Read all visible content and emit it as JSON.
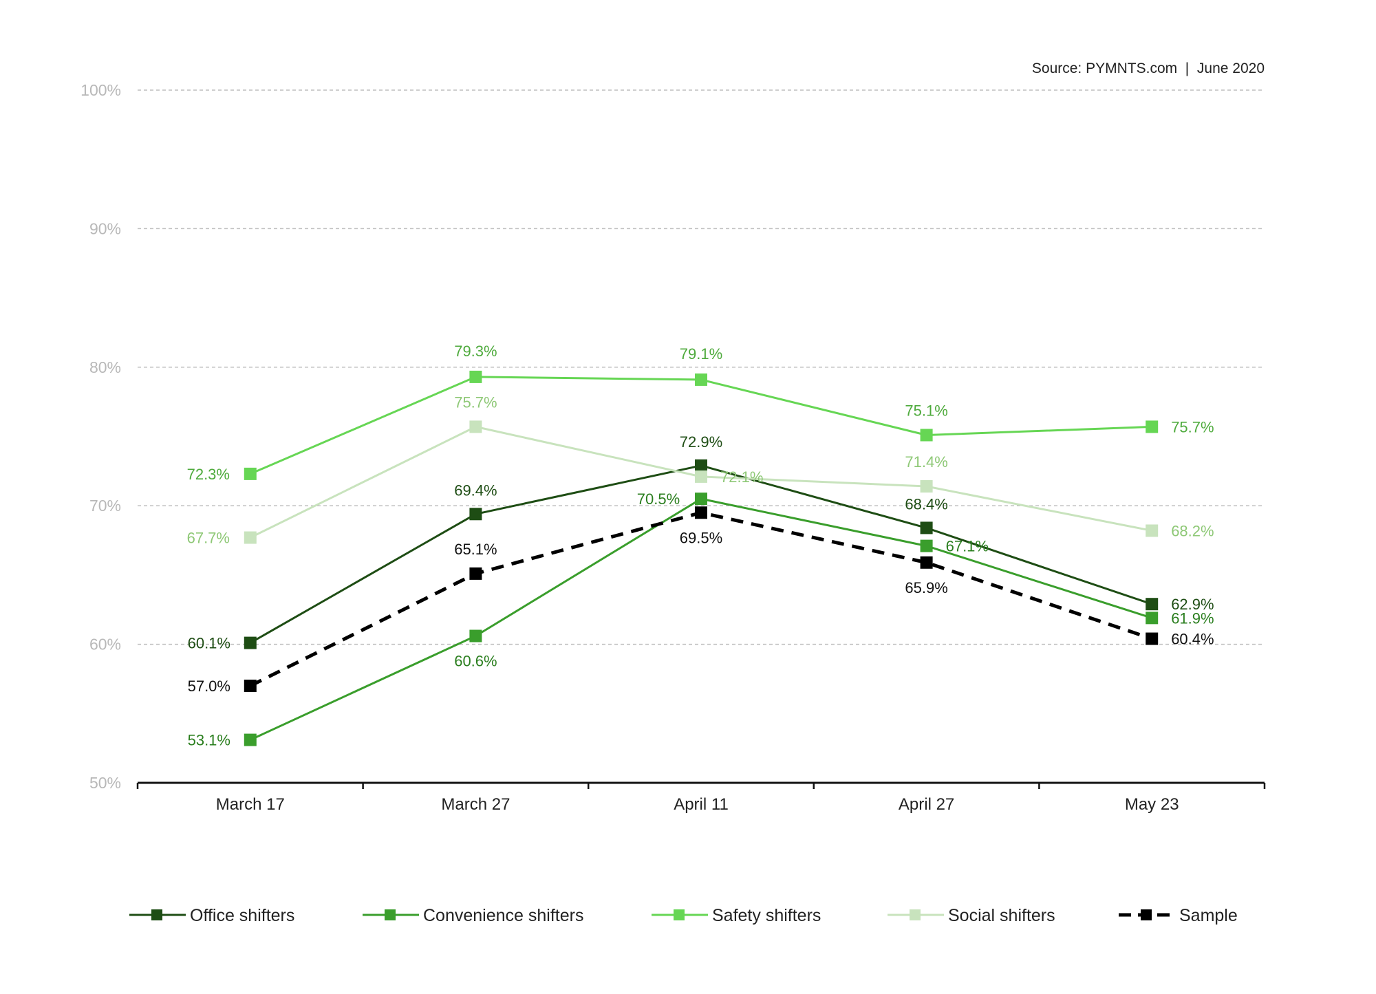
{
  "source_note": "Source: PYMNTS.com  |  June 2020",
  "chart_data": {
    "type": "line",
    "title": "",
    "xlabel": "",
    "ylabel": "",
    "categories": [
      "March 17",
      "March 27",
      "April 11",
      "April 27",
      "May 23"
    ],
    "ylim": [
      50,
      100
    ],
    "yticks": [
      50,
      60,
      70,
      80,
      90,
      100
    ],
    "ytick_labels": [
      "50%",
      "60%",
      "70%",
      "80%",
      "90%",
      "100%"
    ],
    "grid": true,
    "legend_position": "bottom",
    "series": [
      {
        "name": "Office shifters",
        "color": "#1e4d14",
        "dashed": false,
        "values": [
          60.1,
          69.4,
          72.9,
          68.4,
          62.9
        ],
        "labels": [
          "60.1%",
          "69.4%",
          "72.9%",
          "68.4%",
          "62.9%"
        ]
      },
      {
        "name": "Convenience shifters",
        "color": "#3a9e2c",
        "dashed": false,
        "values": [
          53.1,
          60.6,
          70.5,
          67.1,
          61.9
        ],
        "labels": [
          "53.1%",
          "60.6%",
          "70.5%",
          "67.1%",
          "61.9%"
        ]
      },
      {
        "name": "Safety shifters",
        "color": "#66d654",
        "dashed": false,
        "values": [
          72.3,
          79.3,
          79.1,
          75.1,
          75.7
        ],
        "labels": [
          "72.3%",
          "79.3%",
          "79.1%",
          "75.1%",
          "75.7%"
        ]
      },
      {
        "name": "Social shifters",
        "color": "#c8e3bd",
        "dashed": false,
        "values": [
          67.7,
          75.7,
          72.1,
          71.4,
          68.2
        ],
        "labels": [
          "67.7%",
          "75.7%",
          "72.1%",
          "71.4%",
          "68.2%"
        ]
      },
      {
        "name": "Sample",
        "color": "#000000",
        "dashed": true,
        "values": [
          57.0,
          65.1,
          69.5,
          65.9,
          60.4
        ],
        "labels": [
          "57.0%",
          "65.1%",
          "69.5%",
          "65.9%",
          "60.4%"
        ]
      }
    ]
  }
}
